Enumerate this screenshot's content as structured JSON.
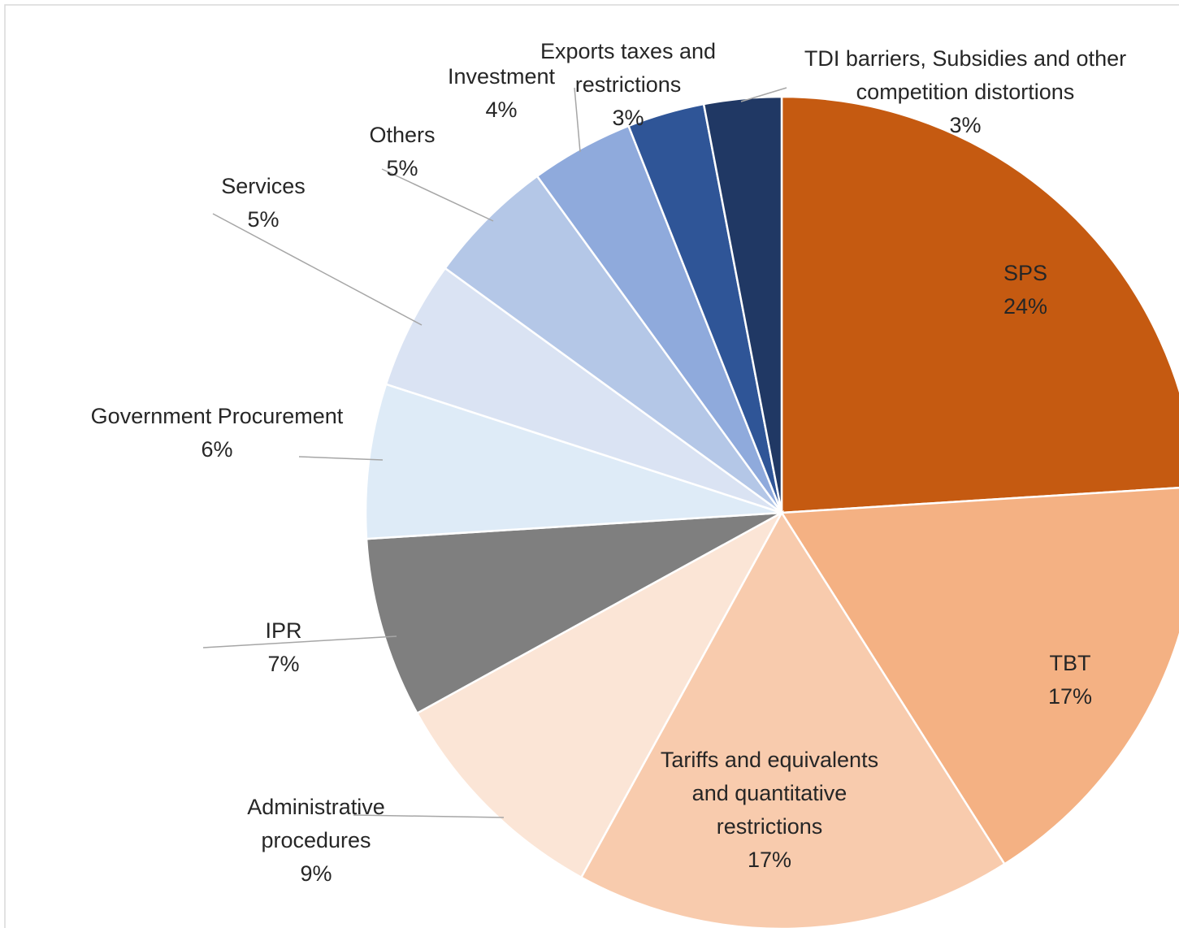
{
  "chart_data": {
    "type": "pie",
    "start_angle_deg": 0,
    "direction": "clockwise",
    "slices": [
      {
        "label_lines": [
          "SPS"
        ],
        "value_label": "24%",
        "value": 24,
        "color": "#c55a11"
      },
      {
        "label_lines": [
          "TBT"
        ],
        "value_label": "17%",
        "value": 17,
        "color": "#f4b183"
      },
      {
        "label_lines": [
          "Tariffs and equivalents",
          "and quantitative",
          "restrictions"
        ],
        "value_label": "17%",
        "value": 17,
        "color": "#f8cbad"
      },
      {
        "label_lines": [
          "Administrative",
          "procedures"
        ],
        "value_label": "9%",
        "value": 9,
        "color": "#fbe5d6"
      },
      {
        "label_lines": [
          "IPR"
        ],
        "value_label": "7%",
        "value": 7,
        "color": "#7f7f7f"
      },
      {
        "label_lines": [
          "Government Procurement"
        ],
        "value_label": "6%",
        "value": 6,
        "color": "#deebf7"
      },
      {
        "label_lines": [
          "Services"
        ],
        "value_label": "5%",
        "value": 5,
        "color": "#dae3f3"
      },
      {
        "label_lines": [
          "Others"
        ],
        "value_label": "5%",
        "value": 5,
        "color": "#b4c7e7"
      },
      {
        "label_lines": [
          "Investment"
        ],
        "value_label": "4%",
        "value": 4,
        "color": "#8faadc"
      },
      {
        "label_lines": [
          "Exports taxes and",
          "restrictions"
        ],
        "value_label": "3%",
        "value": 3,
        "color": "#2f5597"
      },
      {
        "label_lines": [
          "TDI barriers, Subsidies and other",
          "competition distortions"
        ],
        "value_label": "3%",
        "value": 3,
        "color": "#203864"
      }
    ]
  }
}
